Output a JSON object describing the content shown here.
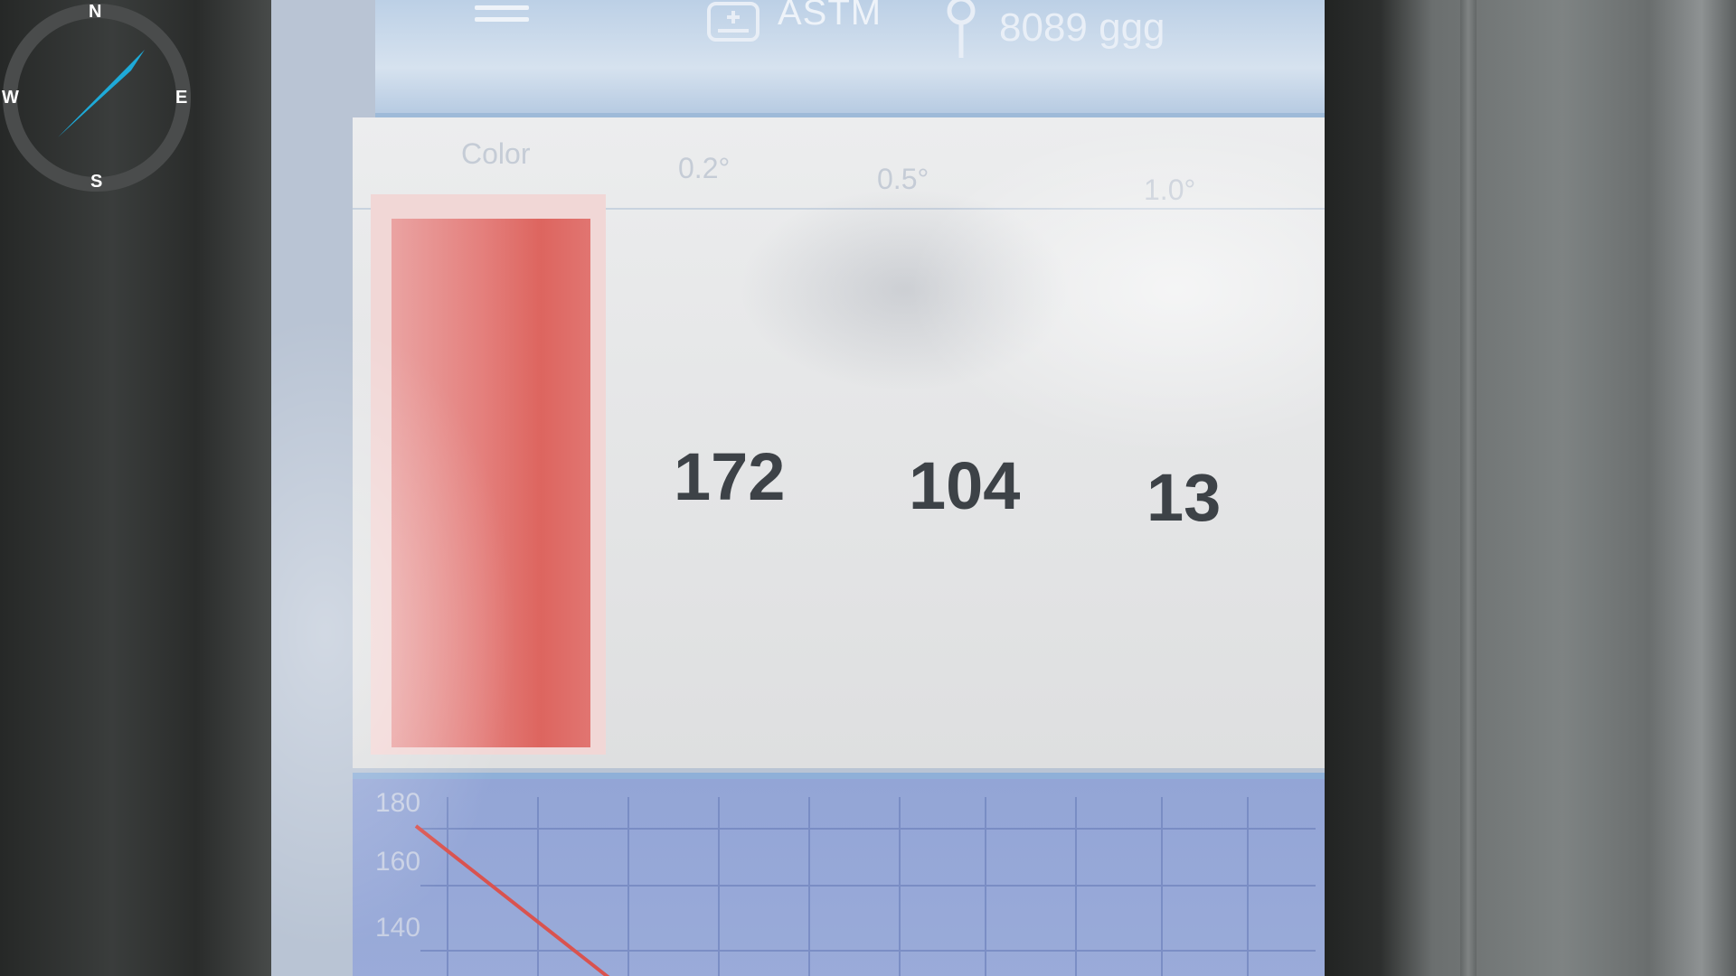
{
  "app": {
    "mode_label": "ASTM",
    "device_id": "8089 ggg",
    "icons": {
      "menu": "hamburger-menu-icon",
      "mode": "device-icon",
      "location": "pin-icon",
      "dropdown": "dropdown-arrow-icon"
    }
  },
  "table": {
    "headers": [
      "Color",
      "0.2°",
      "0.5°",
      "1.0°"
    ],
    "values": [
      "172",
      "104",
      "13"
    ],
    "swatch_color": "#e2706b"
  },
  "chart": {
    "y_ticks": [
      "180",
      "160",
      "140"
    ],
    "series_color": "#d9534f"
  },
  "compass": {
    "north": "N",
    "south": "S",
    "east": "E",
    "west": "W",
    "needle_color": "#1eaad8"
  }
}
